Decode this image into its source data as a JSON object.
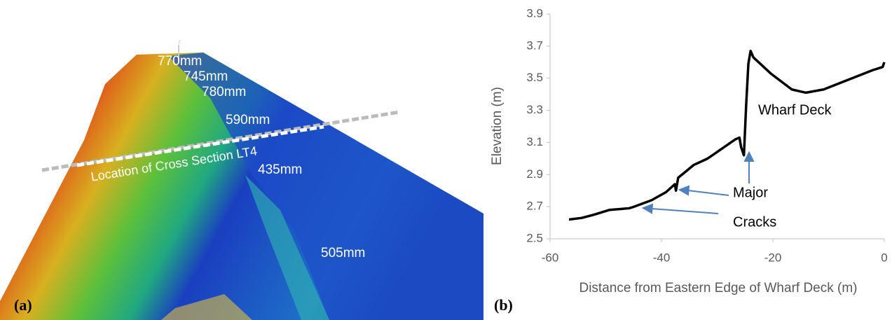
{
  "image": {
    "panel_label": "(a)",
    "section_label": "Location of Cross Section LT4",
    "axis_marker": "z",
    "annotations": [
      "770mm",
      "745mm",
      "780mm",
      "590mm",
      "435mm",
      "505mm"
    ]
  },
  "chart_data": {
    "type": "line",
    "panel_label": "(b)",
    "x_label": "Distance from Eastern Edge of Wharf Deck (m)",
    "y_label": "Elevation (m)",
    "annotations": [
      "Wharf Deck",
      "Major",
      "Cracks"
    ],
    "xlim": [
      -60,
      0
    ],
    "xticks": [
      -60,
      -40,
      -20,
      0
    ],
    "ylim": [
      2.5,
      3.9
    ],
    "yticks": [
      2.5,
      2.7,
      2.9,
      3.1,
      3.3,
      3.5,
      3.7,
      3.9
    ],
    "grid": false,
    "series": [
      {
        "color": "#000000",
        "x": [
          -56.6,
          -54.3,
          -52.1,
          -49.3,
          -45.8,
          -44.9,
          -41.8,
          -39.2,
          -37.6,
          -37.4,
          -37.0,
          -34.2,
          -31.7,
          -29.2,
          -26.7,
          -26.0,
          -25.7,
          -25.2,
          -24.8,
          -24.4,
          -24.0,
          -23.5,
          -20.4,
          -16.6,
          -14.1,
          -10.9,
          -6.5,
          -2.1,
          -0.3,
          0
        ],
        "values": [
          2.62,
          2.63,
          2.65,
          2.68,
          2.69,
          2.7,
          2.74,
          2.79,
          2.84,
          2.8,
          2.88,
          2.96,
          3.0,
          3.06,
          3.12,
          3.13,
          3.07,
          3.02,
          3.33,
          3.59,
          3.67,
          3.63,
          3.53,
          3.43,
          3.41,
          3.43,
          3.49,
          3.55,
          3.57,
          3.6
        ]
      }
    ]
  }
}
